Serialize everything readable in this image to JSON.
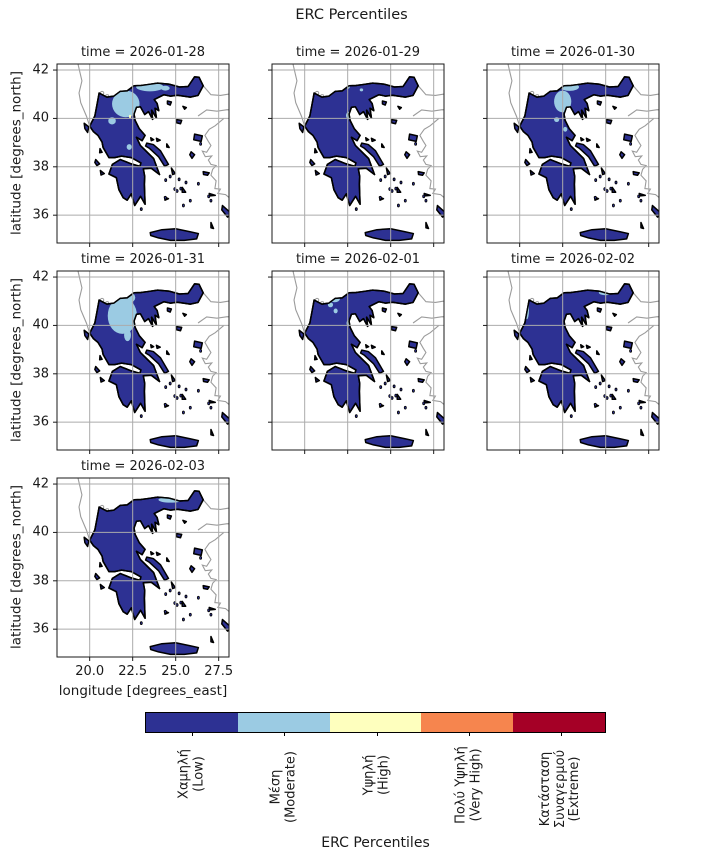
{
  "figure": {
    "title": "ERC Percentiles"
  },
  "axes": {
    "xlabel": "longitude [degrees_east]",
    "ylabel": "latitude [degrees_north]",
    "xtick_labels": [
      "20.0",
      "22.5",
      "25.0",
      "27.5"
    ],
    "ytick_labels": [
      "42",
      "40",
      "38",
      "36"
    ],
    "xticks": [
      20.0,
      22.5,
      25.0,
      27.5
    ],
    "yticks": [
      42,
      40,
      38,
      36
    ],
    "xlim": [
      18.1,
      28.1
    ],
    "ylim": [
      34.85,
      42.25
    ]
  },
  "panels": [
    {
      "title": "time = 2026-01-28",
      "moderate_patches": [
        [
          22.1,
          40.6,
          0.8,
          0.55
        ],
        [
          23.5,
          41.3,
          0.8,
          0.18
        ],
        [
          21.3,
          39.9,
          0.22,
          0.15
        ],
        [
          22.3,
          38.82,
          0.15,
          0.12
        ],
        [
          24.4,
          41.25,
          0.25,
          0.1
        ]
      ],
      "spots": [
        {
          "lon": 22.35,
          "lat": 40.08,
          "class_index": 2
        },
        {
          "lon": 23.0,
          "lat": 41.42,
          "class_index": 3
        }
      ]
    },
    {
      "title": "time = 2026-01-29",
      "moderate_patches": [
        [
          22.6,
          40.12,
          0.2,
          0.16
        ],
        [
          22.5,
          41.3,
          0.12,
          0.07
        ],
        [
          23.3,
          41.18,
          0.1,
          0.06
        ]
      ],
      "spots": []
    },
    {
      "title": "time = 2026-01-30",
      "moderate_patches": [
        [
          22.9,
          41.3,
          0.55,
          0.16
        ],
        [
          22.5,
          40.7,
          0.5,
          0.45
        ],
        [
          22.15,
          39.95,
          0.15,
          0.1
        ],
        [
          22.65,
          39.55,
          0.12,
          0.1
        ]
      ],
      "spots": []
    },
    {
      "title": "time = 2026-01-31",
      "moderate_patches": [
        [
          21.9,
          40.4,
          0.85,
          0.75
        ],
        [
          22.35,
          41.15,
          0.3,
          0.2
        ],
        [
          22.2,
          39.6,
          0.2,
          0.25
        ]
      ],
      "spots": []
    },
    {
      "title": "time = 2026-02-01",
      "moderate_patches": [
        [
          21.75,
          41.1,
          0.3,
          0.14
        ],
        [
          21.5,
          40.85,
          0.15,
          0.1
        ],
        [
          22.6,
          40.1,
          0.17,
          0.14
        ],
        [
          21.8,
          40.6,
          0.12,
          0.1
        ]
      ],
      "spots": []
    },
    {
      "title": "time = 2026-02-02",
      "moderate_patches": [
        [
          25.0,
          41.35,
          0.4,
          0.1
        ],
        [
          20.42,
          40.65,
          0.12,
          0.4
        ]
      ],
      "spots": []
    },
    {
      "title": "time = 2026-02-03",
      "moderate_patches": [
        [
          24.7,
          41.35,
          0.7,
          0.12
        ],
        [
          21.2,
          41.0,
          0.3,
          0.12
        ]
      ],
      "spots": []
    }
  ],
  "colorbar": {
    "title": "ERC Percentiles",
    "classes": [
      {
        "name": "low",
        "label_lines": [
          "Χαμηλή",
          "(Low)"
        ],
        "color": "#2d3193"
      },
      {
        "name": "moderate",
        "label_lines": [
          "Μέση",
          "(Moderate)"
        ],
        "color": "#9bcbe3"
      },
      {
        "name": "high",
        "label_lines": [
          "Υψηλή",
          "(High)"
        ],
        "color": "#feffbe"
      },
      {
        "name": "very-high",
        "label_lines": [
          "Πολύ Υψηλή",
          "(Very High)"
        ],
        "color": "#f6854e"
      },
      {
        "name": "extreme",
        "label_lines": [
          "Κατάσταση",
          "Συναγερμού",
          "(Extreme)"
        ],
        "color": "#a50026"
      }
    ]
  },
  "chart_data": {
    "type": "heatmap",
    "subtype": "faceted categorical choropleth maps of Greece (one per day)",
    "title": "ERC Percentiles",
    "facets": [
      "2026-01-28",
      "2026-01-29",
      "2026-01-30",
      "2026-01-31",
      "2026-02-01",
      "2026-02-02",
      "2026-02-03"
    ],
    "facet_titles": [
      "time = 2026-01-28",
      "time = 2026-01-29",
      "time = 2026-01-30",
      "time = 2026-01-31",
      "time = 2026-02-01",
      "time = 2026-02-02",
      "time = 2026-02-03"
    ],
    "xlabel": "longitude [degrees_east]",
    "ylabel": "latitude [degrees_north]",
    "xticks": [
      20.0,
      22.5,
      25.0,
      27.5
    ],
    "yticks": [
      42,
      40,
      38,
      36
    ],
    "xlim": [
      18.1,
      28.1
    ],
    "ylim": [
      34.85,
      42.25
    ],
    "grid": true,
    "legend_position": "horizontal colorbar at bottom, label: ERC Percentiles",
    "classes": [
      "Χαμηλή (Low)",
      "Μέση (Moderate)",
      "Υψηλή (High)",
      "Πολύ Υψηλή (Very High)",
      "Κατάσταση Συναγερμού (Extreme)"
    ],
    "class_colors": [
      "#2d3193",
      "#9bcbe3",
      "#feffbe",
      "#f6854e",
      "#a50026"
    ],
    "facet_summaries": [
      "Mostly Low; Moderate patches over NW and north-central Greece plus isolated High/Very High pixels",
      "Mostly Low; one small Moderate patch near 22.6E 40.1N and tiny specks on the northern border",
      "Mostly Low; Moderate band in central Macedonia (~22-23E, 39.5-41.4N)",
      "Mostly Low; large Moderate area in NW Greece (~21-22.8E, 39.4-41.3N)",
      "Mostly Low; scattered small Moderate patches in NW Greece (~21.4-22.8E, 40-41.2N)",
      "Mostly Low; thin Moderate strips along the north border (~25E) and the NW border",
      "Mostly Low; thin Moderate strip along the north border (~24-25.4E) and a small NW patch"
    ]
  }
}
